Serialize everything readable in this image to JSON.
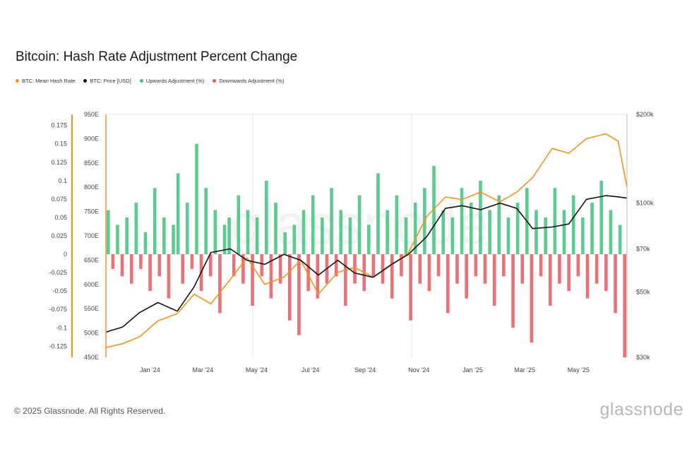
{
  "title": "Bitcoin: Hash Rate Adjustment Percent Change",
  "footer": "© 2025 Glassnode. All Rights Reserved.",
  "brand": "glassnode",
  "watermark": "glassnode",
  "legend": [
    {
      "label": "BTC: Mean Hash Rate",
      "color": "#f7931a"
    },
    {
      "label": "BTC: Price [USD]",
      "color": "#111111"
    },
    {
      "label": "Upwards Adjustment (%)",
      "color": "#3cc47c"
    },
    {
      "label": "Downwards Adjustment (%)",
      "color": "#e8585f"
    }
  ],
  "chart_data": {
    "type": "bar",
    "x_ticks": [
      "Jan '24",
      "Mar '24",
      "May '24",
      "Jul '24",
      "Sep '24",
      "Nov '24",
      "Jan '25",
      "Mar '25",
      "May '25"
    ],
    "left_axis": {
      "ticks": [
        "0.175",
        "0.15",
        "0.125",
        "0.1",
        "0.075",
        "0.05",
        "0.025",
        "0",
        "-0.025",
        "-0.05",
        "-0.075",
        "-0.1",
        "-0.125"
      ],
      "range": [
        -0.14,
        0.19
      ]
    },
    "hash_axis": {
      "ticks": [
        "950E",
        "900E",
        "850E",
        "800E",
        "750E",
        "700E",
        "650E",
        "600E",
        "550E",
        "500E",
        "450E"
      ],
      "range": [
        450,
        950
      ]
    },
    "price_axis": {
      "ticks": [
        "$200k",
        "$100k",
        "$70k",
        "$50k",
        "$30k"
      ],
      "values": [
        200000,
        100000,
        70000,
        50000,
        30000
      ],
      "scale": "log"
    },
    "series": [
      {
        "name": "BTC: Mean Hash Rate",
        "type": "line",
        "color": "#f7931a",
        "x": [
          "2023-11-12",
          "2023-12-01",
          "2023-12-20",
          "2024-01-10",
          "2024-02-01",
          "2024-02-20",
          "2024-03-10",
          "2024-04-01",
          "2024-04-20",
          "2024-05-10",
          "2024-06-01",
          "2024-06-20",
          "2024-07-10",
          "2024-08-01",
          "2024-08-20",
          "2024-09-10",
          "2024-10-01",
          "2024-10-20",
          "2024-11-10",
          "2024-12-01",
          "2024-12-20",
          "2025-01-10",
          "2025-02-01",
          "2025-02-20",
          "2025-03-10",
          "2025-04-01",
          "2025-04-20",
          "2025-05-10",
          "2025-06-01",
          "2025-06-15",
          "2025-06-25"
        ],
        "y": [
          470,
          478,
          492,
          525,
          540,
          580,
          560,
          610,
          655,
          600,
          615,
          650,
          580,
          625,
          635,
          615,
          640,
          665,
          740,
          780,
          775,
          790,
          770,
          790,
          820,
          880,
          870,
          900,
          910,
          895,
          800
        ]
      },
      {
        "name": "BTC: Price [USD]",
        "type": "line",
        "color": "#111111",
        "x": [
          "2023-11-12",
          "2023-12-01",
          "2023-12-20",
          "2024-01-10",
          "2024-02-01",
          "2024-02-20",
          "2024-03-10",
          "2024-04-01",
          "2024-04-20",
          "2024-05-10",
          "2024-06-01",
          "2024-06-20",
          "2024-07-10",
          "2024-08-01",
          "2024-08-20",
          "2024-09-10",
          "2024-10-01",
          "2024-10-20",
          "2024-11-10",
          "2024-12-01",
          "2024-12-20",
          "2025-01-10",
          "2025-02-01",
          "2025-02-20",
          "2025-03-10",
          "2025-04-01",
          "2025-04-20",
          "2025-05-10",
          "2025-06-01",
          "2025-06-15",
          "2025-06-25"
        ],
        "y": [
          36500,
          38000,
          42500,
          46000,
          43000,
          52000,
          68000,
          70000,
          64000,
          62000,
          67000,
          64000,
          57000,
          64000,
          58000,
          56000,
          62000,
          67000,
          77000,
          96000,
          98000,
          95000,
          100000,
          96000,
          82000,
          83000,
          85000,
          103000,
          106000,
          105000,
          104000
        ]
      }
    ],
    "bars": {
      "start": "2023-11-12",
      "end": "2025-06-25",
      "values": [
        0.06,
        -0.02,
        0.04,
        -0.03,
        0.05,
        -0.04,
        0.07,
        -0.02,
        0.03,
        -0.05,
        0.09,
        -0.03,
        0.05,
        -0.06,
        0.04,
        0.11,
        -0.04,
        0.07,
        -0.02,
        0.15,
        -0.05,
        0.09,
        -0.03,
        0.06,
        -0.08,
        0.04,
        0.05,
        -0.03,
        0.08,
        -0.04,
        0.06,
        -0.07,
        0.05,
        -0.03,
        0.1,
        -0.06,
        0.07,
        -0.04,
        0.03,
        -0.09,
        0.04,
        -0.11,
        0.06,
        -0.05,
        0.08,
        -0.06,
        0.05,
        -0.04,
        0.09,
        -0.03,
        0.06,
        -0.07,
        0.05,
        -0.04,
        0.08,
        -0.05,
        0.04,
        -0.03,
        0.11,
        -0.04,
        0.06,
        -0.06,
        0.08,
        -0.03,
        0.05,
        -0.09,
        0.07,
        -0.04,
        0.09,
        -0.05,
        0.12,
        -0.03,
        0.06,
        -0.08,
        0.05,
        -0.04,
        0.09,
        -0.06,
        0.07,
        -0.03,
        0.1,
        -0.04,
        0.06,
        -0.07,
        0.08,
        -0.03,
        0.05,
        -0.1,
        0.07,
        -0.04,
        0.09,
        -0.12,
        0.06,
        -0.03,
        0.05,
        -0.07,
        0.09,
        -0.04,
        0.06,
        -0.05,
        0.08,
        -0.03,
        0.05,
        -0.06,
        0.07,
        -0.04,
        0.1,
        -0.05,
        0.06,
        -0.08,
        0.04,
        -0.14
      ]
    }
  }
}
